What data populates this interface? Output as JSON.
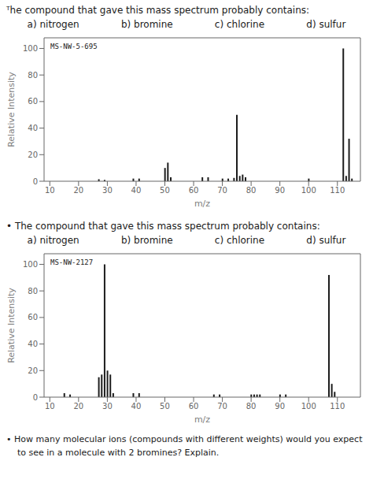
{
  "chart_data": [
    {
      "type": "bar",
      "title": "ᵀhe compound that gave this mass spectrum probably contains:",
      "annotations": [
        "a) nitrogen",
        "b) bromine",
        "c) chlorine",
        "d) sulfur"
      ],
      "subtitle": "MS-NW-5-695",
      "x": [
        27,
        29,
        39,
        41,
        50,
        51,
        52,
        63,
        65,
        70,
        72,
        74,
        75,
        76,
        77,
        78,
        100,
        112,
        113,
        114,
        115
      ],
      "values": [
        1.5,
        1.0,
        2.0,
        2.0,
        10.0,
        14.0,
        3.0,
        3.0,
        3.0,
        2.0,
        2.0,
        2.5,
        50.0,
        4.0,
        5.0,
        3.0,
        2.0,
        100.0,
        4.0,
        32.0,
        2.0
      ],
      "color": "#1c1c1c",
      "xlabel": "m/z",
      "ylabel": "Relative Intensity",
      "xlim": [
        8,
        118
      ],
      "ylim": [
        0,
        108
      ],
      "xticks": [
        10,
        20,
        30,
        40,
        50,
        60,
        70,
        80,
        90,
        100,
        110
      ],
      "yticks": [
        0,
        20,
        40,
        60,
        80,
        100
      ],
      "grid": false
    },
    {
      "type": "bar",
      "title": "•  The compound that gave this mass spectrum probably contains:",
      "annotations": [
        "a) nitrogen",
        "b) bromine",
        "c) chlorine",
        "d) sulfur"
      ],
      "subtitle": "MS-NW-2127",
      "x": [
        15,
        17,
        27,
        28,
        29,
        30,
        31,
        32,
        39,
        41,
        67,
        69,
        80,
        81,
        82,
        83,
        90,
        92,
        107,
        108,
        109
      ],
      "values": [
        3.0,
        2.0,
        15.0,
        17.0,
        100.0,
        20.0,
        17.0,
        3.0,
        3.0,
        3.0,
        2.0,
        2.0,
        2.0,
        2.0,
        2.0,
        2.0,
        2.0,
        2.0,
        92.0,
        10.0,
        4.0
      ],
      "color": "#1c1c1c",
      "xlabel": "m/z",
      "ylabel": "Relative Intensity",
      "xlim": [
        8,
        118
      ],
      "ylim": [
        0,
        108
      ],
      "xticks": [
        10,
        20,
        30,
        40,
        50,
        60,
        70,
        80,
        90,
        100,
        110
      ],
      "yticks": [
        0,
        20,
        40,
        60,
        80,
        100
      ],
      "grid": false
    }
  ],
  "annotations": [
    "•  How many molecular ions (compounds with different weights) would you expect",
    "to see in a molecule with 2 bromines?  Explain."
  ]
}
